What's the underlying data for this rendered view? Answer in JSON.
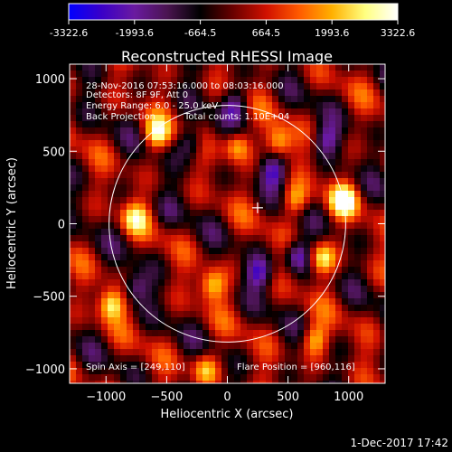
{
  "colorbar": {
    "ticks": [
      "-3322.6",
      "-1993.6",
      "-664.5",
      "664.5",
      "1993.6",
      "3322.6"
    ],
    "stops": [
      "#0000ff",
      "#3a00c8",
      "#6a1aa0",
      "#4a1450",
      "#000000",
      "#6a0000",
      "#d01000",
      "#ff5a00",
      "#ffb000",
      "#ffff80",
      "#ffffff"
    ]
  },
  "chart_data": {
    "type": "heatmap",
    "title": "Reconstructed RHESSI Image",
    "xlabel": "Heliocentric X (arcsec)",
    "ylabel": "Heliocentric Y (arcsec)",
    "xlim": [
      -1300,
      1300
    ],
    "ylim": [
      -1100,
      1100
    ],
    "xticks": [
      -1000,
      -500,
      0,
      500,
      1000
    ],
    "yticks": [
      -1000,
      -500,
      0,
      500,
      1000
    ],
    "value_range": [
      -3322.6,
      3322.6
    ],
    "solar_disk": {
      "center": [
        0,
        0
      ],
      "radius_arcsec": 975
    },
    "flare_marker": [
      249,
      110
    ],
    "hot_spots": [
      {
        "x": 960,
        "y": 160,
        "level": 1.0
      },
      {
        "x": 780,
        "y": -240,
        "level": 0.9
      },
      {
        "x": -960,
        "y": -560,
        "level": 0.9
      },
      {
        "x": -580,
        "y": 620,
        "level": 0.85
      },
      {
        "x": 80,
        "y": 540,
        "level": 0.8
      },
      {
        "x": 420,
        "y": 560,
        "level": 0.8
      },
      {
        "x": -480,
        "y": 80,
        "level": 0.75
      },
      {
        "x": -120,
        "y": -420,
        "level": 0.8
      },
      {
        "x": 720,
        "y": -800,
        "level": 0.75
      },
      {
        "x": -180,
        "y": -1000,
        "level": 0.7
      },
      {
        "x": -760,
        "y": 40,
        "level": 0.7
      },
      {
        "x": 560,
        "y": 160,
        "level": 0.7
      }
    ],
    "cold_spots": [
      {
        "x": -480,
        "y": 80,
        "level": -0.9
      },
      {
        "x": 580,
        "y": -220,
        "level": -0.8
      },
      {
        "x": 260,
        "y": -340,
        "level": -0.7
      },
      {
        "x": 380,
        "y": 360,
        "level": -0.7
      },
      {
        "x": -300,
        "y": 560,
        "level": -0.6
      },
      {
        "x": 60,
        "y": 820,
        "level": -0.6
      },
      {
        "x": 820,
        "y": 580,
        "level": -0.6
      },
      {
        "x": -760,
        "y": -440,
        "level": -0.6
      }
    ],
    "annotations": {
      "date": "28-Nov-2016 07:53:16.000 to 08:03:16.000",
      "detectors": "Detectors: 8F 9F, Att 0",
      "energy": "Energy Range: 6.0 - 25.0 keV",
      "method": "Back Projection",
      "counts": "Total counts: 1.10E+04",
      "spin_axis": "Spin Axis = [249,110]",
      "flare_position": "Flare Position = [960,116]"
    }
  },
  "footer": {
    "timestamp": "1-Dec-2017 17:42"
  }
}
